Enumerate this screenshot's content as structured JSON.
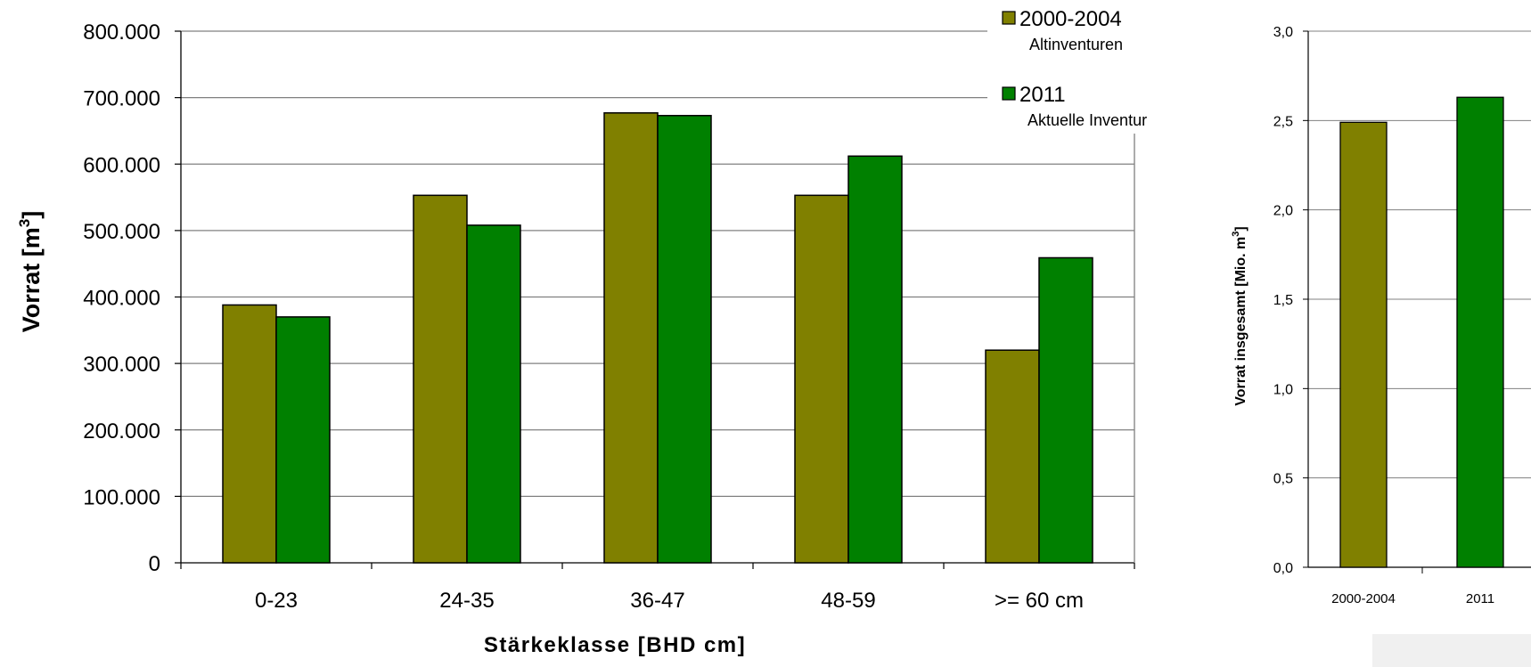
{
  "colors": {
    "old": "#808000",
    "new": "#008000",
    "grid": "#808080",
    "frame": "#808080"
  },
  "chart_data": [
    {
      "type": "bar",
      "title": "",
      "xlabel": "Stärkeklasse [BHD cm]",
      "ylabel": "Vorrat [m",
      "ylabel_sup": "3",
      "ylabel_end": "]",
      "categories": [
        "0-23",
        "24-35",
        "36-47",
        "48-59",
        ">= 60 cm"
      ],
      "ylim": [
        0,
        800000
      ],
      "yticks": [
        "0",
        "100.000",
        "200.000",
        "300.000",
        "400.000",
        "500.000",
        "600.000",
        "700.000",
        "800.000"
      ],
      "grid": true,
      "legend_position": "top-right",
      "series": [
        {
          "name": "2000-2004",
          "sub": "Altinventuren",
          "values": [
            388000,
            553000,
            677000,
            553000,
            320000
          ]
        },
        {
          "name": "2011",
          "sub": "Aktuelle Inventur",
          "values": [
            370000,
            508000,
            673000,
            612000,
            459000
          ]
        }
      ]
    },
    {
      "type": "bar",
      "title": "",
      "xlabel": "",
      "ylabel": "Vorrat insgesamt [Mio. m",
      "ylabel_sup": "3",
      "ylabel_end": "]",
      "categories": [
        "2000-2004",
        "2011"
      ],
      "values": [
        2.49,
        2.63
      ],
      "ylim": [
        0,
        3.0
      ],
      "yticks": [
        "0,0",
        "0,5",
        "1,0",
        "1,5",
        "2,0",
        "2,5",
        "3,0"
      ],
      "grid": true
    }
  ]
}
